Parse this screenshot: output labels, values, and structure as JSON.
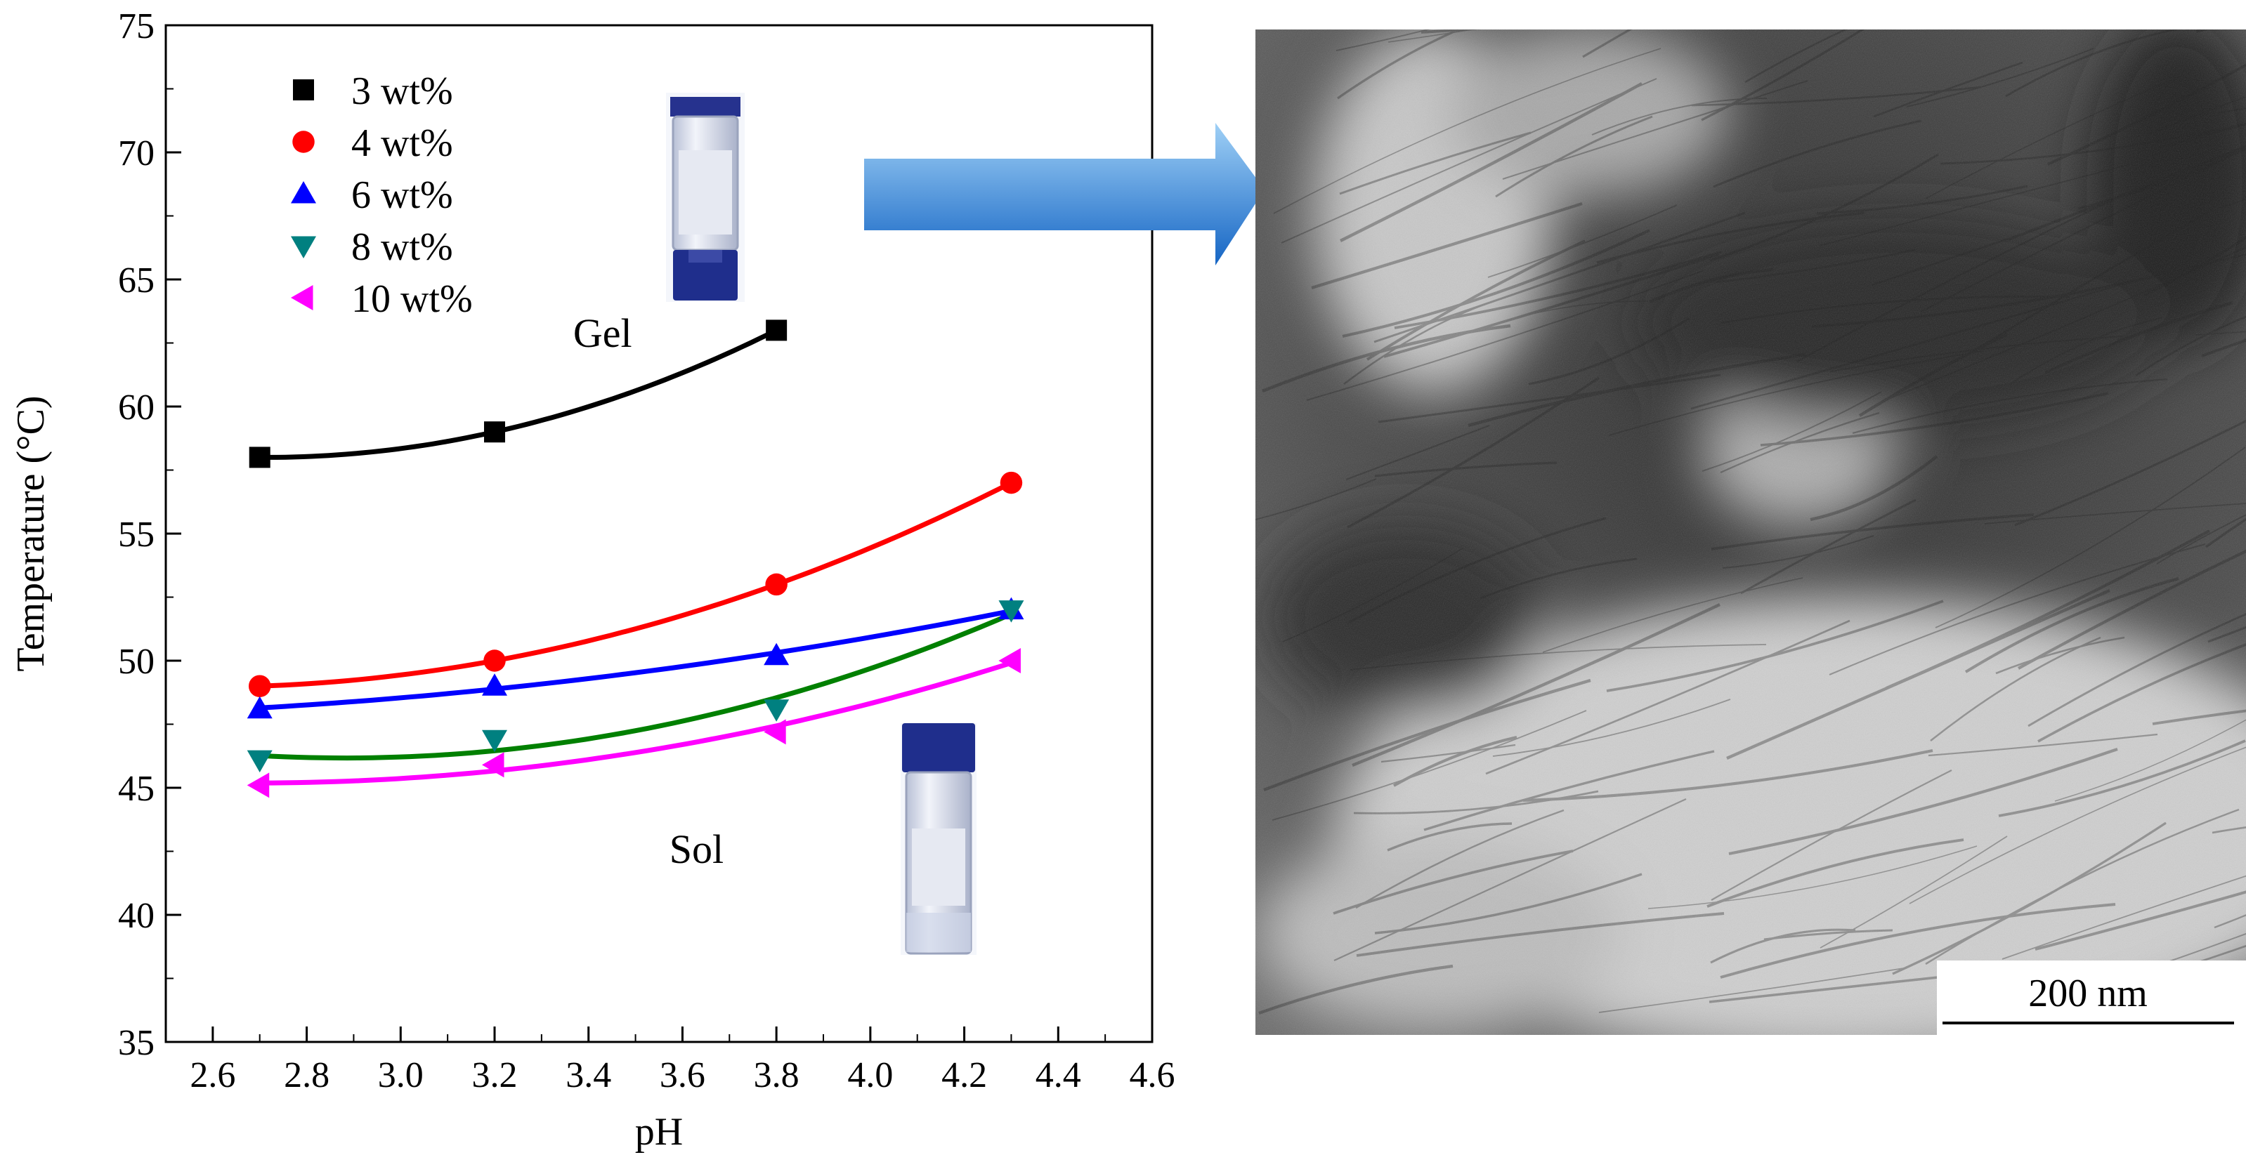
{
  "chart_data": {
    "type": "scatter",
    "title": "",
    "xlabel": "pH",
    "ylabel": "Temperature (°C)",
    "xlim": [
      2.5,
      4.6
    ],
    "ylim": [
      35,
      75
    ],
    "x_ticks": [
      "2.6",
      "2.8",
      "3.0",
      "3.2",
      "3.4",
      "3.6",
      "3.8",
      "4.0",
      "4.2",
      "4.4",
      "4.6"
    ],
    "y_ticks": [
      "35",
      "40",
      "45",
      "50",
      "55",
      "60",
      "65",
      "70",
      "75"
    ],
    "grid": false,
    "legend_position": "top-left",
    "series": [
      {
        "name": "3 wt%",
        "marker": "square",
        "color": "#000000",
        "line_color": "#000000",
        "x": [
          2.7,
          3.2,
          3.8
        ],
        "y": [
          58,
          59,
          63
        ]
      },
      {
        "name": "4 wt%",
        "marker": "circle",
        "color": "#ff0000",
        "line_color": "#ff0000",
        "x": [
          2.7,
          3.2,
          3.8,
          4.3
        ],
        "y": [
          49,
          50,
          53,
          57
        ]
      },
      {
        "name": "6 wt%",
        "marker": "triangle-up",
        "color": "#0000ff",
        "line_color": "#0000ff",
        "x": [
          2.7,
          3.2,
          3.8,
          4.3
        ],
        "y": [
          48.1,
          49,
          50.2,
          52
        ]
      },
      {
        "name": "8 wt%",
        "marker": "triangle-down",
        "color": "#008080",
        "line_color": "#008000",
        "x": [
          2.7,
          3.2,
          3.8,
          4.3
        ],
        "y": [
          46.1,
          46.9,
          48.1,
          52
        ]
      },
      {
        "name": "10 wt%",
        "marker": "triangle-left",
        "color": "#ff00ff",
        "line_color": "#ff00ff",
        "x": [
          2.7,
          3.2,
          3.8,
          4.3
        ],
        "y": [
          45.1,
          45.9,
          47.2,
          50
        ]
      }
    ],
    "annotations": [
      {
        "text": "Gel",
        "x": 3.43,
        "y": 62.9
      },
      {
        "text": "Sol",
        "x": 3.63,
        "y": 42.6
      }
    ]
  },
  "micrograph": {
    "scale_bar_label": "200 nm"
  },
  "colors": {
    "arrow_top": "#9fd0f6",
    "arrow_bottom": "#1565c4",
    "vial_cap": "#1f2e8c"
  }
}
